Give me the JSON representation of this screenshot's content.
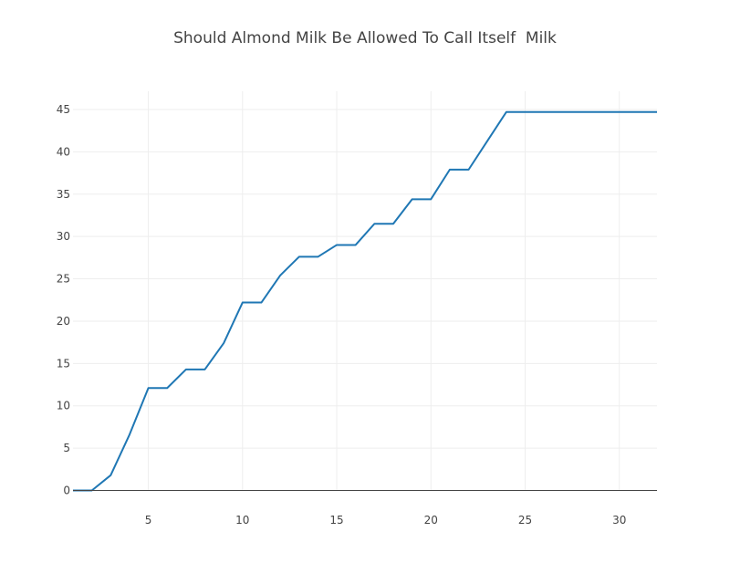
{
  "chart_data": {
    "type": "line",
    "title": "Should Almond Milk Be Allowed To Call Itself  Milk",
    "xlabel": "",
    "ylabel": "",
    "xlim": [
      1,
      32
    ],
    "ylim": [
      0,
      45
    ],
    "x_ticks": [
      5,
      10,
      15,
      20,
      25,
      30
    ],
    "y_ticks": [
      0,
      5,
      10,
      15,
      20,
      25,
      30,
      35,
      40,
      45
    ],
    "grid": true,
    "legend": "none",
    "series": [
      {
        "color": "#1f77b4",
        "x": [
          1,
          2,
          3,
          4,
          5,
          6,
          7,
          8,
          9,
          10,
          11,
          12,
          13,
          14,
          15,
          16,
          17,
          18,
          19,
          20,
          21,
          22,
          23,
          24,
          25,
          26,
          27,
          28,
          29,
          30,
          31,
          32
        ],
        "y": [
          0,
          0,
          1.8,
          6.6,
          12.1,
          12.1,
          14.3,
          14.3,
          17.4,
          22.2,
          22.2,
          25.4,
          27.6,
          27.6,
          29.0,
          29.0,
          31.5,
          31.5,
          34.4,
          34.4,
          37.9,
          37.9,
          41.3,
          44.7,
          44.7,
          44.7,
          44.7,
          44.7,
          44.7,
          44.7,
          44.7,
          44.7
        ]
      }
    ]
  }
}
